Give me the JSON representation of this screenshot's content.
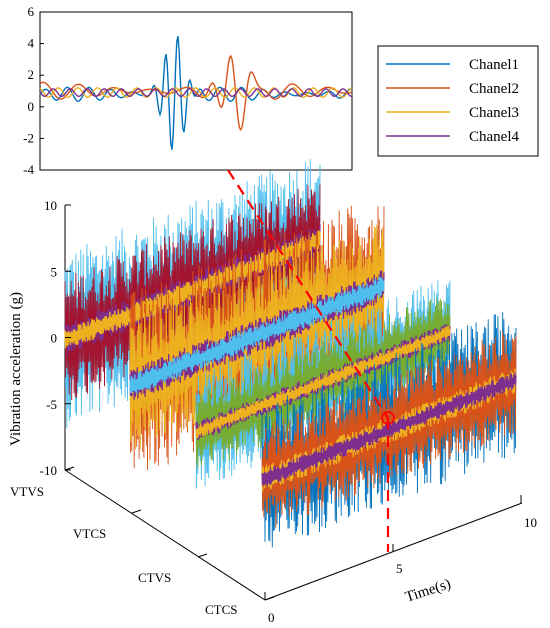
{
  "chart_data": [
    {
      "type": "line",
      "title": "",
      "xlabel": "",
      "ylabel": "",
      "ylim": [
        -4,
        6
      ],
      "yticks": [
        -4,
        -2,
        0,
        2,
        4,
        6
      ],
      "grid": false,
      "legend_position": "right",
      "series": [
        {
          "name": "Chanel1",
          "color": "#0072BD",
          "peak": 4.6,
          "trough": -2.9,
          "baseline": 0.8
        },
        {
          "name": "Chanel2",
          "color": "#D95319",
          "peak": 3.3,
          "trough": -1.3,
          "baseline": 1.0
        },
        {
          "name": "Chanel3",
          "color": "#EDB120",
          "peak": 1.4,
          "trough": 0.4,
          "baseline": 0.9
        },
        {
          "name": "Chanel4",
          "color": "#7E2F8E",
          "peak": 1.3,
          "trough": 0.5,
          "baseline": 0.9
        }
      ]
    },
    {
      "type": "line",
      "title": "",
      "xlabel": "Time(s)",
      "ylabel": "Vibration acceleration (g)",
      "zlim": [
        -10,
        10
      ],
      "zticks": [
        -10,
        -5,
        0,
        5,
        10
      ],
      "xticks": [
        0,
        5,
        10
      ],
      "categories": [
        "VTVS",
        "VTCS",
        "CTVS",
        "CTCS"
      ],
      "grid": false,
      "highlight": {
        "category": "CTCS",
        "time": 5,
        "color": "#FF0000"
      },
      "groups": [
        {
          "category": "VTVS",
          "amplitude": 8.5,
          "series_colors": [
            "#4DBEEE",
            "#A2142F",
            "#7E2F8E",
            "#EDB120"
          ]
        },
        {
          "category": "VTCS",
          "amplitude": 9.0,
          "series_colors": [
            "#D95319",
            "#EDB120",
            "#7E2F8E",
            "#4DBEEE"
          ]
        },
        {
          "category": "CTVS",
          "amplitude": 6.5,
          "series_colors": [
            "#4DBEEE",
            "#77AC30",
            "#7E2F8E",
            "#EDB120"
          ]
        },
        {
          "category": "CTCS",
          "amplitude": 7.5,
          "series_colors": [
            "#0072BD",
            "#D95319",
            "#EDB120",
            "#7E2F8E"
          ]
        }
      ]
    }
  ],
  "legend": {
    "items": [
      {
        "label": "Chanel1",
        "color": "#0072BD"
      },
      {
        "label": "Chanel2",
        "color": "#D95319"
      },
      {
        "label": "Chanel3",
        "color": "#EDB120"
      },
      {
        "label": "Chanel4",
        "color": "#7E2F8E"
      }
    ]
  }
}
